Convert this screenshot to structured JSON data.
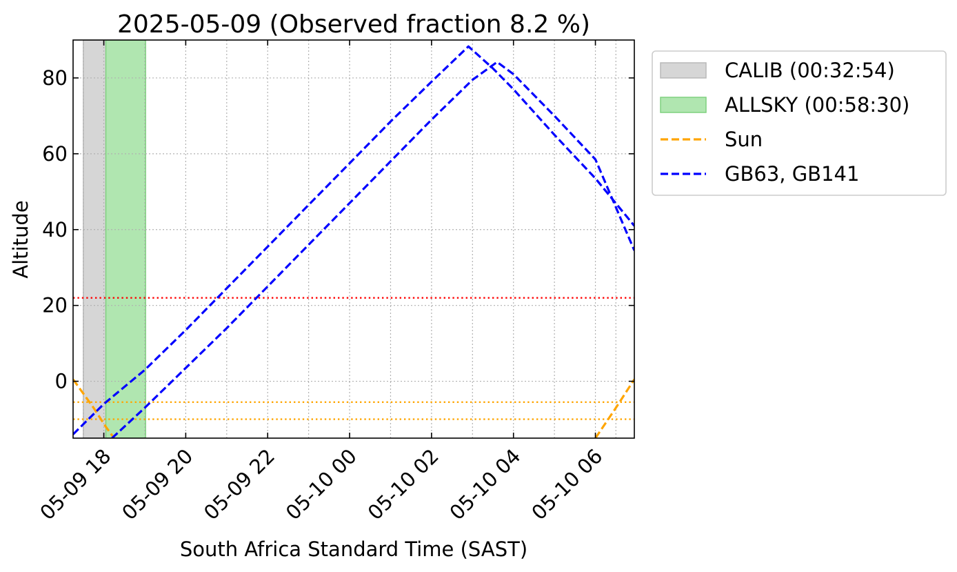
{
  "chart_data": {
    "type": "line",
    "title": "2025-05-09 (Observed fraction 8.2 %)",
    "xlabel": "South Africa Standard Time (SAST)",
    "ylabel": "Altitude",
    "x_unit": "hours since 05-09 00:00 SAST",
    "xlim": [
      17.25,
      30.95
    ],
    "ylim": [
      -15,
      90
    ],
    "x_ticks": [
      {
        "value": 18,
        "label": "05-09 18"
      },
      {
        "value": 20,
        "label": "05-09 20"
      },
      {
        "value": 22,
        "label": "05-09 22"
      },
      {
        "value": 24,
        "label": "05-10 00"
      },
      {
        "value": 26,
        "label": "05-10 02"
      },
      {
        "value": 28,
        "label": "05-10 04"
      },
      {
        "value": 30,
        "label": "05-10 06"
      }
    ],
    "y_ticks": [
      {
        "value": 0,
        "label": "0"
      },
      {
        "value": 20,
        "label": "20"
      },
      {
        "value": 40,
        "label": "40"
      },
      {
        "value": 60,
        "label": "60"
      },
      {
        "value": 80,
        "label": "80"
      }
    ],
    "grid": true,
    "legend_position": "outside-top-right",
    "spans": [
      {
        "name": "CALIB (00:32:54)",
        "x_start": 17.5,
        "x_end": 18.05,
        "color": "#d6d6d6",
        "edge": "#b8b8b8"
      },
      {
        "name": "ALLSKY (00:58:30)",
        "x_start": 18.05,
        "x_end": 19.02,
        "color": "#b0e6b0",
        "edge": "#7fd17f"
      }
    ],
    "series": [
      {
        "name": "Sun",
        "color": "#ffa500",
        "dash": "dashed",
        "segments": [
          [
            [
              17.25,
              0.5
            ],
            [
              17.75,
              -7
            ],
            [
              18.05,
              -12
            ],
            [
              18.25,
              -15
            ]
          ],
          [
            [
              30.0,
              -15
            ],
            [
              30.5,
              -7
            ],
            [
              30.95,
              0.5
            ]
          ]
        ]
      },
      {
        "name": "GB63, GB141",
        "color": "#0000ff",
        "dash": "dashed",
        "segments": [
          [
            [
              17.25,
              -14
            ],
            [
              18.0,
              -6
            ],
            [
              19.0,
              3
            ],
            [
              20.0,
              13.5
            ],
            [
              21.0,
              24.5
            ],
            [
              22.0,
              35.5
            ],
            [
              23.0,
              46.5
            ],
            [
              24.0,
              57.5
            ],
            [
              25.0,
              68.5
            ],
            [
              26.0,
              79
            ],
            [
              26.9,
              88.3
            ],
            [
              27.5,
              82.5
            ],
            [
              28.0,
              77
            ],
            [
              29.0,
              65
            ],
            [
              30.0,
              53.5
            ],
            [
              30.95,
              41
            ]
          ]
        ]
      },
      {
        "name": "",
        "color": "#0000ff",
        "dash": "dashed",
        "segments": [
          [
            [
              18.2,
              -15
            ],
            [
              19.0,
              -7
            ],
            [
              20.0,
              3.5
            ],
            [
              21.0,
              14
            ],
            [
              22.0,
              25
            ],
            [
              23.0,
              36
            ],
            [
              24.0,
              47
            ],
            [
              25.0,
              58
            ],
            [
              26.0,
              69
            ],
            [
              27.0,
              79.5
            ],
            [
              27.6,
              84.2
            ],
            [
              28.0,
              81
            ],
            [
              29.0,
              70
            ],
            [
              30.0,
              58.5
            ],
            [
              30.95,
              34.5
            ]
          ]
        ]
      }
    ],
    "reference_lines": [
      {
        "y": 22,
        "color": "#ff0000",
        "style": "dotted"
      },
      {
        "y": -5.5,
        "color": "#ffa500",
        "style": "dotted"
      },
      {
        "y": -10,
        "color": "#ffa500",
        "style": "dotted"
      }
    ]
  },
  "legend": {
    "items": [
      {
        "label": "CALIB (00:32:54)",
        "kind": "patch",
        "color": "#d6d6d6",
        "edge": "#b8b8b8"
      },
      {
        "label": "ALLSKY (00:58:30)",
        "kind": "patch",
        "color": "#b0e6b0",
        "edge": "#7fd17f"
      },
      {
        "label": "Sun",
        "kind": "line",
        "color": "#ffa500"
      },
      {
        "label": "GB63, GB141",
        "kind": "line",
        "color": "#0000ff"
      }
    ]
  }
}
